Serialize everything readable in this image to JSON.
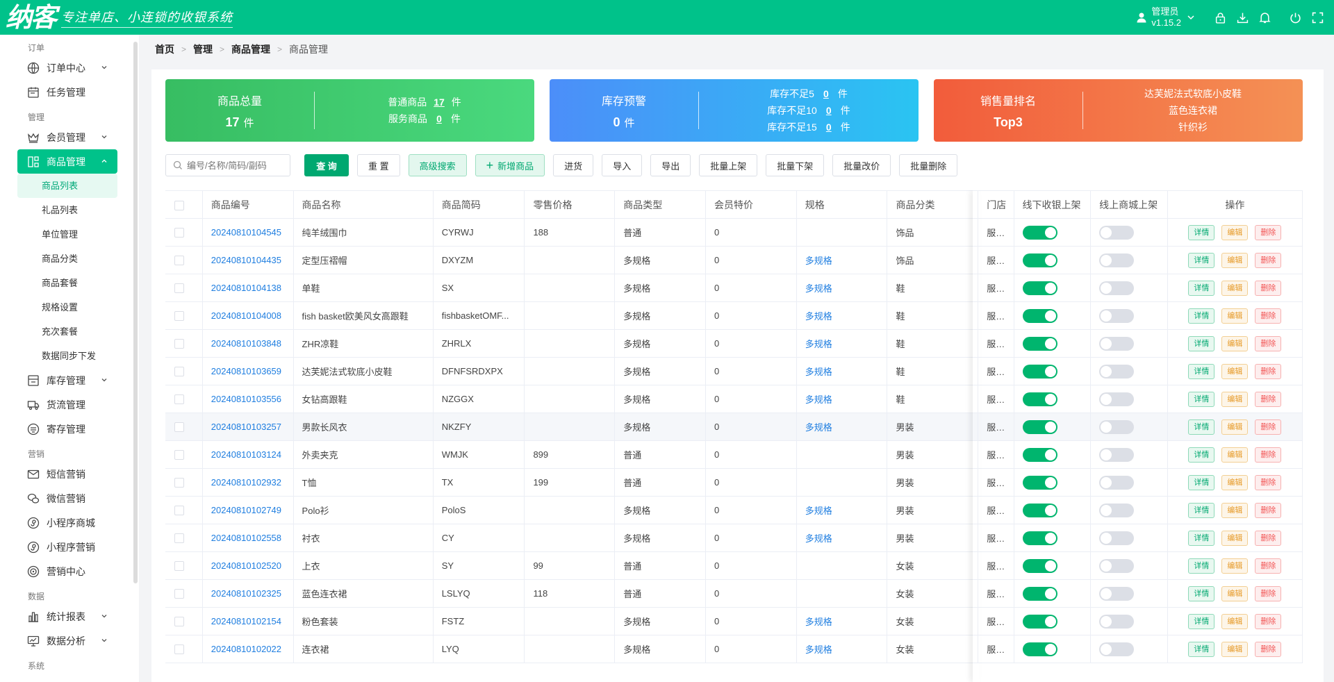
{
  "header": {
    "logo": "纳客",
    "slogan": "专注单店、小连锁的收银系统",
    "user_name": "管理员",
    "version": "v1.15.2"
  },
  "sidebar": {
    "groups": [
      {
        "label": "订单"
      },
      {
        "label": "管理"
      },
      {
        "label": "营销"
      },
      {
        "label": "数据"
      },
      {
        "label": "系统"
      }
    ],
    "items": {
      "order_center": "订单中心",
      "task_mgmt": "任务管理",
      "member_mgmt": "会员管理",
      "goods_mgmt": "商品管理",
      "stock_mgmt": "库存管理",
      "logistics_mgmt": "货流管理",
      "consign_mgmt": "寄存管理",
      "sms_marketing": "短信营销",
      "wechat_marketing": "微信营销",
      "mini_mall": "小程序商城",
      "mini_marketing": "小程序营销",
      "marketing_center": "营销中心",
      "stats_report": "统计报表",
      "data_analysis": "数据分析"
    },
    "sub_items": [
      "商品列表",
      "礼品列表",
      "单位管理",
      "商品分类",
      "商品套餐",
      "规格设置",
      "充次套餐",
      "数据同步下发"
    ]
  },
  "breadcrumb": [
    "首页",
    "管理",
    "商品管理",
    "商品管理"
  ],
  "cards": {
    "total": {
      "title": "商品总量",
      "value": "17",
      "unit": "件",
      "normal_label": "普通商品",
      "normal_value": "17",
      "service_label": "服务商品",
      "service_value": "0"
    },
    "stock": {
      "title": "库存预警",
      "value": "0",
      "unit": "件",
      "r1_label": "库存不足5",
      "r1_value": "0",
      "r2_label": "库存不足10",
      "r2_value": "0",
      "r3_label": "库存不足15",
      "r3_value": "0"
    },
    "sales": {
      "title": "销售量排名",
      "value": "Top3",
      "top1": "达芙妮法式软底小皮鞋",
      "top2": "蓝色连衣裙",
      "top3": "针织衫"
    }
  },
  "toolbar": {
    "search_placeholder": "编号/名称/简码/副码",
    "query": "查 询",
    "reset": "重 置",
    "advanced": "高级搜索",
    "add": "新增商品",
    "purchase": "进货",
    "import": "导入",
    "export": "导出",
    "batch_on": "批量上架",
    "batch_off": "批量下架",
    "batch_price": "批量改价",
    "batch_delete": "批量删除"
  },
  "table": {
    "columns": [
      "商品编号",
      "商品名称",
      "商品简码",
      "零售价格",
      "商品类型",
      "会员特价",
      "规格",
      "商品分类",
      "门店",
      "线下收银上架",
      "线上商城上架",
      "操作"
    ],
    "actions": {
      "detail": "详情",
      "edit": "编辑",
      "delete": "删除"
    },
    "rows": [
      {
        "code": "20240810104545",
        "name": "纯羊绒围巾",
        "abbr": "CYRWJ",
        "price": "188",
        "type": "普通",
        "member_price": "0",
        "spec": "",
        "category": "饰品",
        "store": "服装鞋",
        "offline": true,
        "online": false
      },
      {
        "code": "20240810104435",
        "name": "定型压褶帽",
        "abbr": "DXYZM",
        "price": "",
        "type": "多规格",
        "member_price": "0",
        "spec": "多规格",
        "category": "饰品",
        "store": "服装鞋",
        "offline": true,
        "online": false
      },
      {
        "code": "20240810104138",
        "name": "单鞋",
        "abbr": "SX",
        "price": "",
        "type": "多规格",
        "member_price": "0",
        "spec": "多规格",
        "category": "鞋",
        "store": "服装鞋",
        "offline": true,
        "online": false
      },
      {
        "code": "20240810104008",
        "name": "fish basket欧美风女高跟鞋",
        "abbr": "fishbasketOMF...",
        "price": "",
        "type": "多规格",
        "member_price": "0",
        "spec": "多规格",
        "category": "鞋",
        "store": "服装鞋",
        "offline": true,
        "online": false
      },
      {
        "code": "20240810103848",
        "name": "ZHR凉鞋",
        "abbr": "ZHRLX",
        "price": "",
        "type": "多规格",
        "member_price": "0",
        "spec": "多规格",
        "category": "鞋",
        "store": "服装鞋",
        "offline": true,
        "online": false
      },
      {
        "code": "20240810103659",
        "name": "达芙妮法式软底小皮鞋",
        "abbr": "DFNFSRDXPX",
        "price": "",
        "type": "多规格",
        "member_price": "0",
        "spec": "多规格",
        "category": "鞋",
        "store": "服装鞋",
        "offline": true,
        "online": false
      },
      {
        "code": "20240810103556",
        "name": "女钻高跟鞋",
        "abbr": "NZGGX",
        "price": "",
        "type": "多规格",
        "member_price": "0",
        "spec": "多规格",
        "category": "鞋",
        "store": "服装鞋",
        "offline": true,
        "online": false
      },
      {
        "code": "20240810103257",
        "name": "男款长风衣",
        "abbr": "NKZFY",
        "price": "",
        "type": "多规格",
        "member_price": "0",
        "spec": "多规格",
        "category": "男装",
        "store": "服装鞋",
        "offline": true,
        "online": false
      },
      {
        "code": "20240810103124",
        "name": "外卖夹克",
        "abbr": "WMJK",
        "price": "899",
        "type": "普通",
        "member_price": "0",
        "spec": "",
        "category": "男装",
        "store": "服装鞋",
        "offline": true,
        "online": false
      },
      {
        "code": "20240810102932",
        "name": "T恤",
        "abbr": "TX",
        "price": "199",
        "type": "普通",
        "member_price": "0",
        "spec": "",
        "category": "男装",
        "store": "服装鞋",
        "offline": true,
        "online": false
      },
      {
        "code": "20240810102749",
        "name": "Polo衫",
        "abbr": "PoloS",
        "price": "",
        "type": "多规格",
        "member_price": "0",
        "spec": "多规格",
        "category": "男装",
        "store": "服装鞋",
        "offline": true,
        "online": false
      },
      {
        "code": "20240810102558",
        "name": "衬衣",
        "abbr": "CY",
        "price": "",
        "type": "多规格",
        "member_price": "0",
        "spec": "多规格",
        "category": "男装",
        "store": "服装鞋",
        "offline": true,
        "online": false
      },
      {
        "code": "20240810102520",
        "name": "上衣",
        "abbr": "SY",
        "price": "99",
        "type": "普通",
        "member_price": "0",
        "spec": "",
        "category": "女装",
        "store": "服装鞋",
        "offline": true,
        "online": false
      },
      {
        "code": "20240810102325",
        "name": "蓝色连衣裙",
        "abbr": "LSLYQ",
        "price": "118",
        "type": "普通",
        "member_price": "0",
        "spec": "",
        "category": "女装",
        "store": "服装鞋",
        "offline": true,
        "online": false
      },
      {
        "code": "20240810102154",
        "name": "粉色套装",
        "abbr": "FSTZ",
        "price": "",
        "type": "多规格",
        "member_price": "0",
        "spec": "多规格",
        "category": "女装",
        "store": "服装鞋",
        "offline": true,
        "online": false
      },
      {
        "code": "20240810102022",
        "name": "连衣裙",
        "abbr": "LYQ",
        "price": "",
        "type": "多规格",
        "member_price": "0",
        "spec": "多规格",
        "category": "女装",
        "store": "服装鞋",
        "offline": true,
        "online": false
      }
    ]
  }
}
